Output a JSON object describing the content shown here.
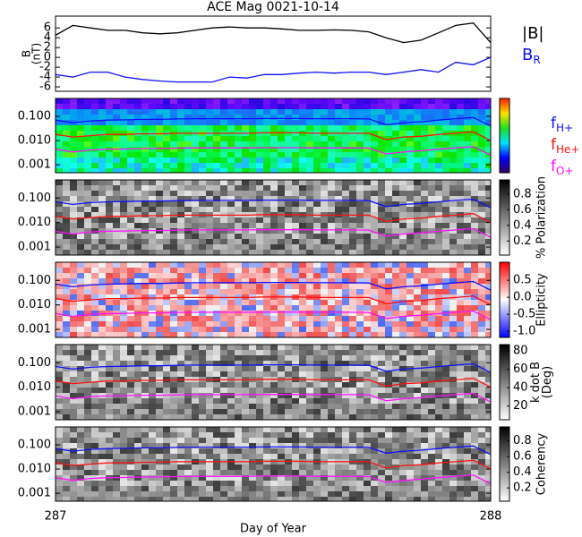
{
  "title": "ACE Mag 0021-10-14",
  "x_label": "Day of Year",
  "xlim": [
    287,
    288
  ],
  "xticks": [
    287,
    288
  ],
  "chart_data": [
    {
      "type": "line",
      "ylabel": [
        "B",
        "(nT)"
      ],
      "ylim": [
        -6.9,
        8.4
      ],
      "yticks": [
        6,
        4,
        2,
        0,
        -2,
        -4,
        -6
      ],
      "x": [
        287.0,
        287.04,
        287.08,
        287.12,
        287.16,
        287.2,
        287.24,
        287.28,
        287.32,
        287.36,
        287.4,
        287.44,
        287.48,
        287.52,
        287.56,
        287.6,
        287.64,
        287.68,
        287.72,
        287.76,
        287.8,
        287.84,
        287.88,
        287.92,
        287.96,
        288.0
      ],
      "series": [
        {
          "name": "|B|",
          "color": "#000000",
          "values": [
            4.5,
            6.5,
            6.0,
            5.5,
            5.5,
            5.0,
            4.8,
            5.0,
            5.5,
            6.0,
            6.2,
            6.0,
            6.0,
            5.8,
            5.5,
            5.5,
            5.6,
            5.5,
            5.2,
            4.0,
            3.0,
            3.5,
            5.0,
            6.5,
            7.0,
            3.0
          ]
        },
        {
          "name": "B",
          "subscript": "R",
          "color": "#1010ff",
          "values": [
            -3.5,
            -4.0,
            -3.0,
            -3.0,
            -4.0,
            -4.5,
            -4.8,
            -5.0,
            -5.0,
            -5.0,
            -4.0,
            -4.2,
            -3.5,
            -3.5,
            -3.2,
            -3.0,
            -3.2,
            -3.0,
            -3.0,
            -3.5,
            -3.0,
            -2.5,
            -3.0,
            -1.0,
            -1.5,
            0.0
          ]
        }
      ]
    },
    {
      "type": "spectrogram",
      "colormap": "rainbow",
      "log": true,
      "ylim": [
        0.00047,
        0.55
      ],
      "yticks": [
        {
          "value": 0.1,
          "label": "0.100"
        },
        {
          "value": 0.01,
          "label": "0.010"
        },
        {
          "value": 0.001,
          "label": "0.001"
        }
      ],
      "series": [
        {
          "name": "f",
          "subscript": "H+",
          "color": "#1010ff",
          "values": [
            0.07,
            0.055,
            0.065,
            0.07,
            0.072,
            0.075,
            0.075,
            0.078,
            0.08,
            0.08,
            0.08,
            0.08,
            0.082,
            0.082,
            0.082,
            0.08,
            0.08,
            0.08,
            0.078,
            0.045,
            0.055,
            0.06,
            0.07,
            0.08,
            0.09,
            0.04
          ]
        },
        {
          "name": "f",
          "subscript": "He+",
          "color": "#ff1010",
          "values": [
            0.018,
            0.014,
            0.016,
            0.018,
            0.018,
            0.019,
            0.019,
            0.02,
            0.02,
            0.02,
            0.02,
            0.02,
            0.021,
            0.021,
            0.021,
            0.02,
            0.02,
            0.02,
            0.02,
            0.011,
            0.014,
            0.015,
            0.018,
            0.02,
            0.023,
            0.01
          ]
        },
        {
          "name": "f",
          "subscript": "O+",
          "color": "#ff10ff",
          "values": [
            0.0044,
            0.0034,
            0.0041,
            0.0044,
            0.0045,
            0.0047,
            0.0047,
            0.0049,
            0.005,
            0.005,
            0.005,
            0.005,
            0.0051,
            0.0051,
            0.0051,
            0.005,
            0.005,
            0.005,
            0.0049,
            0.0028,
            0.0034,
            0.0038,
            0.0044,
            0.005,
            0.0056,
            0.0025
          ]
        }
      ]
    },
    {
      "type": "spectrogram",
      "colormap": "gray",
      "colorbar_label": [
        "% Polarization"
      ],
      "clim": [
        0.02,
        0.98
      ],
      "cticks": [
        0.2,
        0.4,
        0.6,
        0.8
      ]
    },
    {
      "type": "spectrogram",
      "colormap": "redblue",
      "colorbar_label": [
        "Ellipticity"
      ],
      "clim": [
        -1.18,
        1.03
      ],
      "cticks": [
        {
          "value": -1,
          "label": "-1.0"
        },
        -0.5,
        {
          "value": 0,
          "label": "0.0"
        },
        0.5
      ]
    },
    {
      "type": "spectrogram",
      "colormap": "gray",
      "colorbar_label": [
        "k dot B",
        "(Deg)"
      ],
      "clim": [
        5,
        87
      ],
      "cticks": [
        20,
        40,
        60,
        80
      ]
    },
    {
      "type": "spectrogram",
      "colormap": "gray",
      "colorbar_label": [
        "Coherency"
      ],
      "clim": [
        0.03,
        0.98
      ],
      "cticks": [
        0.2,
        0.4,
        0.6,
        0.8
      ]
    }
  ]
}
